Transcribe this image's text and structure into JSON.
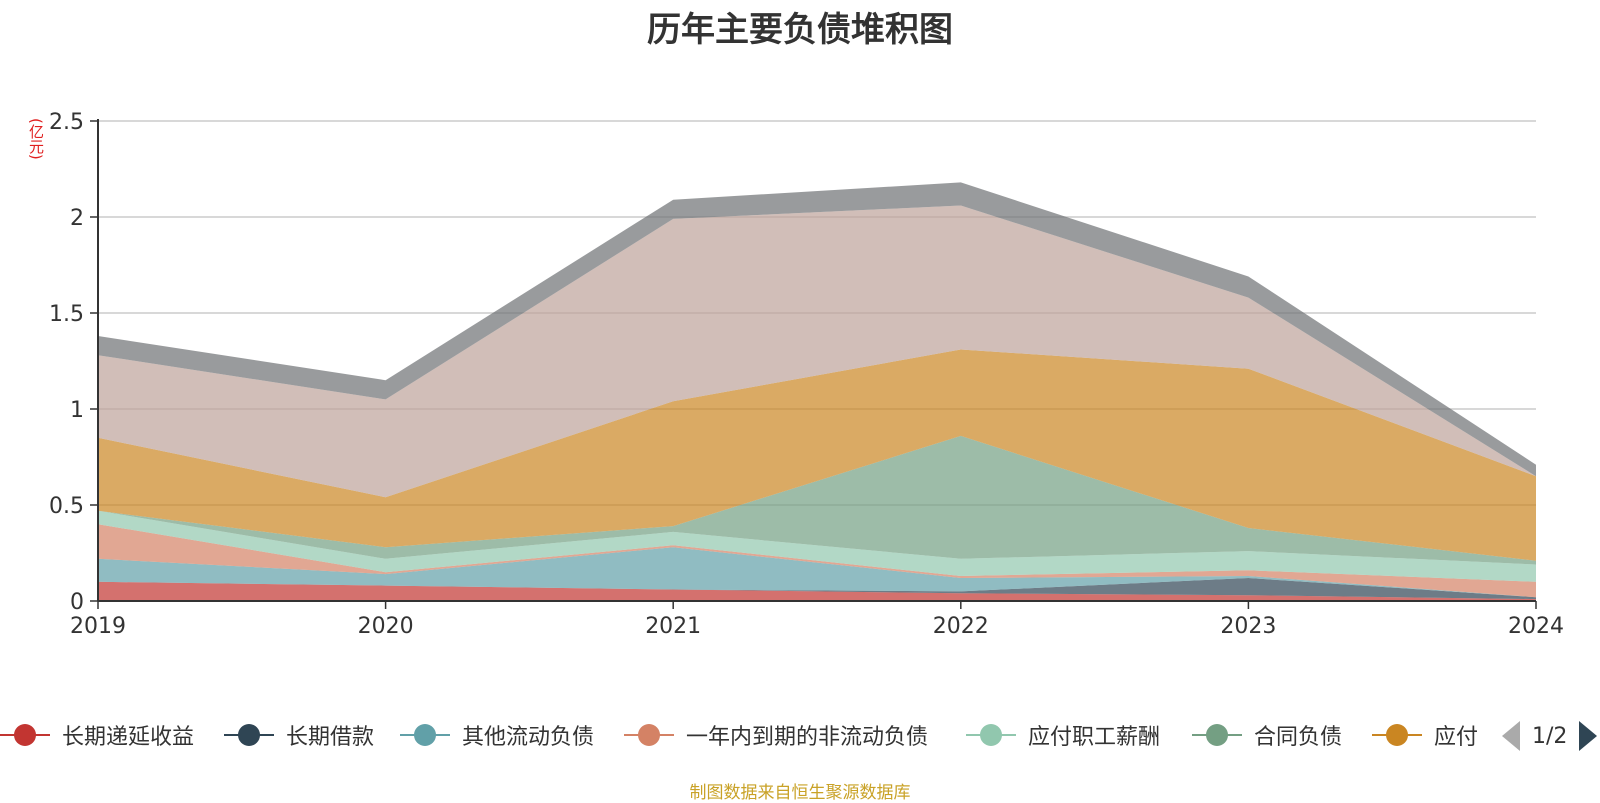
{
  "title": "历年主要负债堆积图",
  "unit_label": "(亿元)",
  "source_note": "制图数据来自恒生聚源数据库",
  "pager": {
    "text": "1/2"
  },
  "chart_data": {
    "type": "area",
    "stacked": true,
    "categories": [
      "2019",
      "2020",
      "2021",
      "2022",
      "2023",
      "2024"
    ],
    "ylim": [
      0,
      2.5
    ],
    "yticks": [
      "0",
      "0.5",
      "1",
      "1.5",
      "2",
      "2.5"
    ],
    "grid": true,
    "legend_placement": "bottom",
    "series": [
      {
        "name": "长期递延收益",
        "color": "#c23531",
        "values": [
          0.1,
          0.08,
          0.06,
          0.04,
          0.03,
          0.01
        ]
      },
      {
        "name": "长期借款",
        "color": "#2f4554",
        "values": [
          0.0,
          0.0,
          0.0,
          0.01,
          0.09,
          0.01
        ]
      },
      {
        "name": "其他流动负债",
        "color": "#61a0a8",
        "values": [
          0.12,
          0.06,
          0.22,
          0.07,
          0.01,
          0.0
        ]
      },
      {
        "name": "一年内到期的非流动负债",
        "color": "#d48265",
        "values": [
          0.18,
          0.01,
          0.01,
          0.01,
          0.03,
          0.08
        ]
      },
      {
        "name": "应付职工薪酬",
        "color": "#91c7ae",
        "values": [
          0.07,
          0.07,
          0.07,
          0.09,
          0.1,
          0.09
        ]
      },
      {
        "name": "合同负债",
        "color": "#749f83",
        "values": [
          0.0,
          0.06,
          0.03,
          0.64,
          0.12,
          0.02
        ]
      },
      {
        "name": "应付",
        "color": "#ca8622",
        "values": [
          0.38,
          0.26,
          0.65,
          0.45,
          0.83,
          0.44
        ]
      },
      {
        "name": "",
        "color": "#bda29a",
        "values": [
          0.43,
          0.51,
          0.95,
          0.75,
          0.37,
          0.0
        ]
      },
      {
        "name": "",
        "color": "#6e7074",
        "values": [
          0.1,
          0.1,
          0.1,
          0.12,
          0.11,
          0.06
        ]
      }
    ]
  }
}
